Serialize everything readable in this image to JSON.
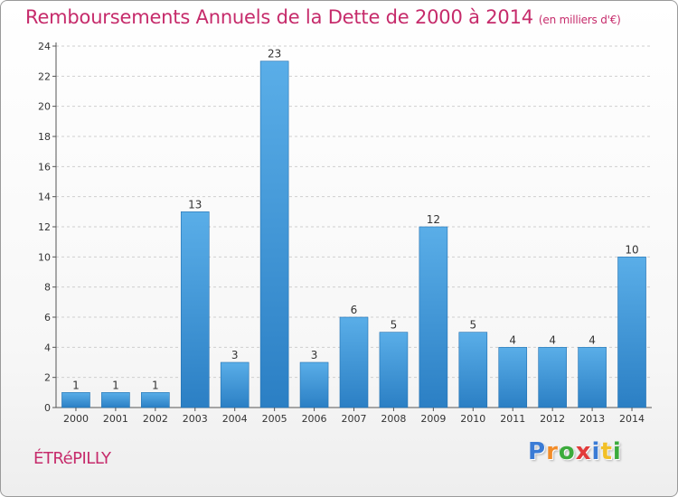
{
  "title": "Remboursements Annuels de la Dette de 2000 à 2014",
  "subtitle": "(en milliers d'€)",
  "place_name": "ÉTRéPILLY",
  "logo": {
    "letters": [
      "P",
      "r",
      "o",
      "x",
      "i",
      "t",
      "i"
    ],
    "colors": [
      "#3a7bd5",
      "#f28c28",
      "#3cab3c",
      "#e23b3b",
      "#3a7bd5",
      "#f2c028",
      "#3cab3c"
    ]
  },
  "colors": {
    "bar_light": "#5aaee8",
    "bar_dark": "#2b7fc4",
    "accent": "#c62b6b",
    "grid": "#cfcfcf"
  },
  "chart_data": {
    "type": "bar",
    "title": "Remboursements Annuels de la Dette de 2000 à 2014",
    "subtitle": "(en milliers d'€)",
    "categories": [
      "2000",
      "2001",
      "2002",
      "2003",
      "2004",
      "2005",
      "2006",
      "2007",
      "2008",
      "2009",
      "2010",
      "2011",
      "2012",
      "2013",
      "2014"
    ],
    "values": [
      1,
      1,
      1,
      13,
      3,
      23,
      3,
      6,
      5,
      12,
      5,
      4,
      4,
      4,
      10
    ],
    "data_labels": [
      "1",
      "1",
      "1",
      "13",
      "3",
      "23",
      "3",
      "6",
      "5",
      "12",
      "5",
      "4",
      "4",
      "4",
      "10"
    ],
    "ylim": [
      0,
      24
    ],
    "yticks": [
      "0",
      "2",
      "4",
      "6",
      "8",
      "10",
      "12",
      "14",
      "16",
      "18",
      "20",
      "22",
      "24"
    ],
    "grid": true
  }
}
